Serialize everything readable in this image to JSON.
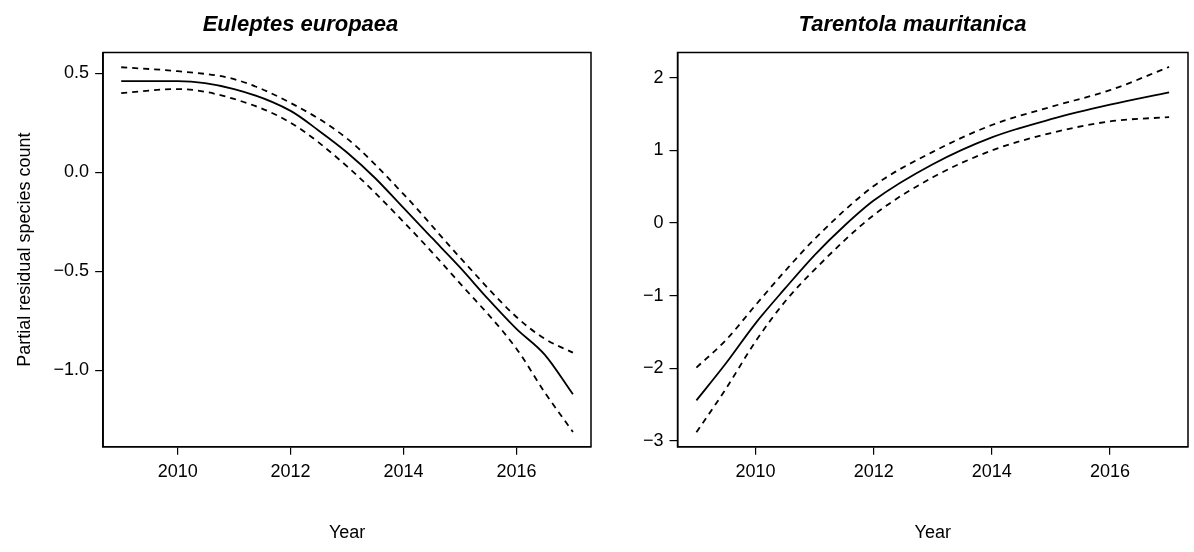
{
  "chart_data": [
    {
      "type": "line",
      "title": "Euleptes europaea",
      "xlabel": "Year",
      "ylabel": "Partial residual species count",
      "xlim": [
        2008.68,
        2017.32
      ],
      "xticks": [
        2010,
        2012,
        2014,
        2016
      ],
      "ylim": [
        -1.385,
        0.605
      ],
      "yticks": [
        {
          "value": -1,
          "label": "−1.0"
        },
        {
          "value": -0.5,
          "label": "−0.5"
        },
        {
          "value": 0,
          "label": "0.0"
        },
        0.5
      ],
      "marker": "none",
      "series": [
        {
          "color": "#000000",
          "line_style": "solid",
          "x": [
            2009,
            2010,
            2011,
            2012,
            2012.5,
            2013,
            2013.5,
            2014,
            2014.5,
            2015,
            2015.5,
            2016,
            2016.5,
            2017
          ],
          "values": [
            0.46,
            0.46,
            0.42,
            0.31,
            0.21,
            0.1,
            -0.03,
            -0.18,
            -0.33,
            -0.48,
            -0.64,
            -0.79,
            -0.92,
            -1.12
          ]
        },
        {
          "color": "#000000",
          "line_style": "dashed",
          "x": [
            2009,
            2010,
            2011,
            2012,
            2013,
            2014,
            2015,
            2016,
            2016.5,
            2017
          ],
          "values": [
            0.53,
            0.51,
            0.47,
            0.35,
            0.17,
            -0.11,
            -0.43,
            -0.73,
            -0.84,
            -0.91
          ]
        },
        {
          "color": "#000000",
          "line_style": "dashed",
          "x": [
            2009,
            2010,
            2011,
            2012,
            2013,
            2014,
            2015,
            2016,
            2016.5,
            2017
          ],
          "values": [
            0.4,
            0.42,
            0.37,
            0.25,
            0.03,
            -0.25,
            -0.56,
            -0.89,
            -1.11,
            -1.31
          ]
        }
      ]
    },
    {
      "type": "line",
      "title": "Tarentola mauritanica",
      "xlabel": "Year",
      "xlim": [
        2008.68,
        2017.32
      ],
      "xticks": [
        2010,
        2012,
        2014,
        2016
      ],
      "ylim": [
        -3.08,
        2.35
      ],
      "yticks": [
        {
          "value": -3,
          "label": "−3"
        },
        {
          "value": -2,
          "label": "−2"
        },
        {
          "value": -1,
          "label": "−1"
        },
        0,
        1,
        2
      ],
      "marker": "none",
      "series": [
        {
          "color": "#000000",
          "line_style": "solid",
          "x": [
            2009,
            2009.5,
            2010,
            2010.5,
            2011,
            2011.5,
            2012,
            2013,
            2014,
            2015,
            2016,
            2017
          ],
          "values": [
            -2.44,
            -1.93,
            -1.38,
            -0.9,
            -0.44,
            -0.04,
            0.31,
            0.81,
            1.18,
            1.43,
            1.63,
            1.8
          ]
        },
        {
          "color": "#000000",
          "line_style": "dashed",
          "x": [
            2009,
            2009.5,
            2010,
            2010.5,
            2011,
            2012,
            2013,
            2014,
            2015,
            2016,
            2017
          ],
          "values": [
            -1.99,
            -1.61,
            -1.13,
            -0.66,
            -0.22,
            0.51,
            0.98,
            1.35,
            1.6,
            1.83,
            2.15
          ]
        },
        {
          "color": "#000000",
          "line_style": "dashed",
          "x": [
            2009,
            2009.5,
            2010,
            2010.5,
            2011,
            2012,
            2013,
            2014,
            2015,
            2016,
            2017
          ],
          "values": [
            -2.88,
            -2.28,
            -1.63,
            -1.08,
            -0.64,
            0.11,
            0.63,
            1.0,
            1.24,
            1.4,
            1.46
          ]
        }
      ]
    }
  ]
}
